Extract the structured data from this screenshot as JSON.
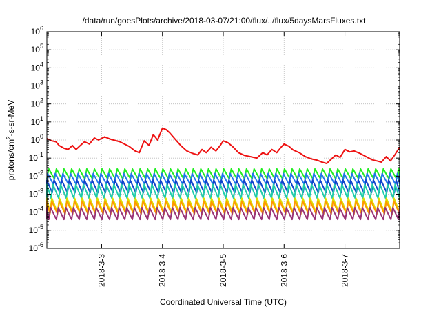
{
  "chart_data": {
    "type": "line",
    "title": "/data/run/goesPlots/archive/2018-03-07/21:00/flux/../flux/5daysMarsFluxes.txt",
    "xlabel": "Coordinated Universal Time (UTC)",
    "ylabel_parts": {
      "base": "protons/cm",
      "sup": "2",
      "tail": "-s-sr-MeV"
    },
    "y_scale": "log",
    "ylim_exp": [
      -6,
      6
    ],
    "xlim_days": [
      2.1,
      7.9
    ],
    "grid": true,
    "x_ticks": [
      {
        "label": "2018-3-3",
        "day": 3
      },
      {
        "label": "2018-3-4",
        "day": 4
      },
      {
        "label": "2018-3-5",
        "day": 5
      },
      {
        "label": "2018-3-6",
        "day": 6
      },
      {
        "label": "2018-3-7",
        "day": 7
      }
    ],
    "y_ticks": [
      {
        "base": "10",
        "exp": "6",
        "value": 1000000
      },
      {
        "base": "10",
        "exp": "5",
        "value": 100000
      },
      {
        "base": "10",
        "exp": "4",
        "value": 10000
      },
      {
        "base": "10",
        "exp": "3",
        "value": 1000
      },
      {
        "base": "10",
        "exp": "2",
        "value": 100
      },
      {
        "base": "10",
        "exp": "1",
        "value": 10
      },
      {
        "base": "10",
        "exp": "0",
        "value": 1
      },
      {
        "base": "10",
        "exp": "-1",
        "value": 0.1
      },
      {
        "base": "10",
        "exp": "-2",
        "value": 0.01
      },
      {
        "base": "10",
        "exp": "-3",
        "value": 0.001
      },
      {
        "base": "10",
        "exp": "-4",
        "value": 0.0001
      },
      {
        "base": "10",
        "exp": "-5",
        "value": 1e-05
      },
      {
        "base": "10",
        "exp": "-6",
        "value": 1e-06
      }
    ],
    "series": [
      {
        "color": "#ee1111",
        "x": [
          2.1,
          2.18,
          2.25,
          2.3,
          2.38,
          2.45,
          2.52,
          2.58,
          2.65,
          2.72,
          2.8,
          2.88,
          2.95,
          3.05,
          3.15,
          3.3,
          3.45,
          3.55,
          3.62,
          3.7,
          3.78,
          3.85,
          3.92,
          4.0,
          4.06,
          4.12,
          4.2,
          4.3,
          4.4,
          4.5,
          4.58,
          4.65,
          4.72,
          4.8,
          4.88,
          4.95,
          5.0,
          5.08,
          5.15,
          5.25,
          5.35,
          5.45,
          5.55,
          5.65,
          5.72,
          5.8,
          5.88,
          5.95,
          6.0,
          6.08,
          6.15,
          6.25,
          6.35,
          6.45,
          6.55,
          6.62,
          6.7,
          6.78,
          6.85,
          6.92,
          7.0,
          7.08,
          7.15,
          7.25,
          7.35,
          7.45,
          7.52,
          7.6,
          7.68,
          7.75,
          7.82,
          7.9
        ],
        "y": [
          1.2,
          0.9,
          0.8,
          0.5,
          0.35,
          0.3,
          0.5,
          0.3,
          0.5,
          0.8,
          0.6,
          1.3,
          1.0,
          1.5,
          1.1,
          0.8,
          0.45,
          0.25,
          0.2,
          0.9,
          0.5,
          2.0,
          1.0,
          4.5,
          3.8,
          2.5,
          1.2,
          0.5,
          0.25,
          0.18,
          0.15,
          0.3,
          0.2,
          0.4,
          0.25,
          0.5,
          0.9,
          0.7,
          0.45,
          0.2,
          0.14,
          0.12,
          0.1,
          0.2,
          0.15,
          0.3,
          0.2,
          0.4,
          0.6,
          0.45,
          0.28,
          0.2,
          0.12,
          0.09,
          0.075,
          0.06,
          0.05,
          0.09,
          0.15,
          0.11,
          0.3,
          0.22,
          0.25,
          0.18,
          0.12,
          0.08,
          0.07,
          0.06,
          0.12,
          0.07,
          0.15,
          0.4
        ]
      }
    ],
    "periodic_series": [
      {
        "color": "#22ee22",
        "low": 0.007,
        "high": 0.025,
        "phase": 0.0
      },
      {
        "color": "#2277ee",
        "low": 0.0035,
        "high": 0.014,
        "phase": 0.15
      },
      {
        "color": "#1144cc",
        "low": 0.0012,
        "high": 0.006,
        "phase": 0.3
      },
      {
        "color": "#22ccaa",
        "low": 0.0006,
        "high": 0.0035,
        "phase": 0.45
      },
      {
        "color": "#dddd00",
        "low": 0.0001,
        "high": 0.0006,
        "phase": 0.6
      },
      {
        "color": "#ff9900",
        "low": 8e-05,
        "high": 0.0004,
        "phase": 0.6
      },
      {
        "color": "#993377",
        "low": 4e-05,
        "high": 0.00018,
        "phase": 0.75
      }
    ],
    "period_days": 0.125
  }
}
